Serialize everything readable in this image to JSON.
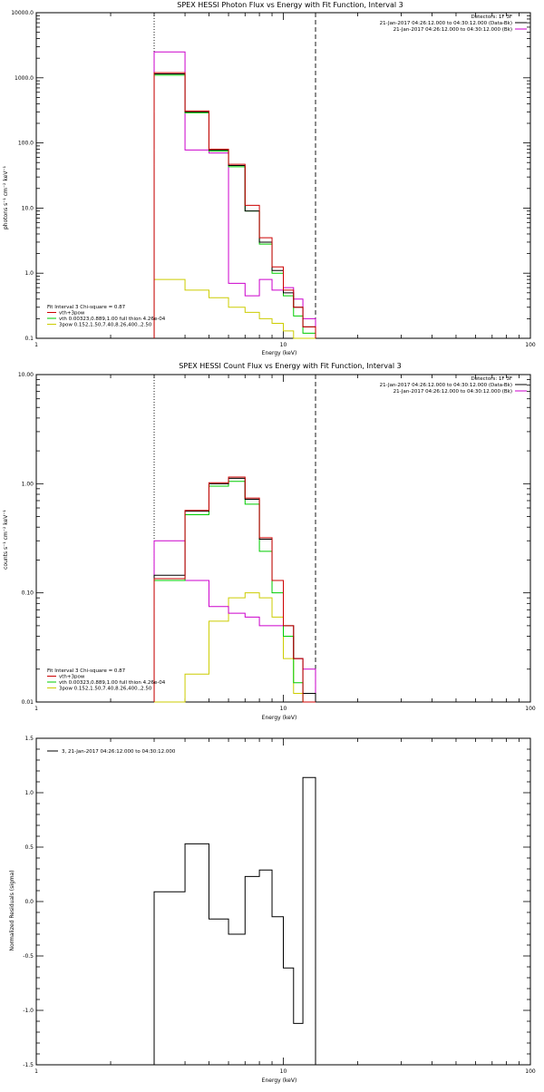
{
  "chart_data": [
    {
      "type": "line",
      "title": "SPEX HESSI Photon Flux vs Energy with Fit Function, Interval 3",
      "xlabel": "Energy (keV)",
      "ylabel": "photons s⁻¹ cm⁻² keV⁻¹",
      "xscale": "log",
      "yscale": "log",
      "xlim": [
        1,
        100
      ],
      "ylim": [
        0.1,
        10000
      ],
      "x_ticks": [
        "1",
        "10",
        "100"
      ],
      "y_ticks": [
        "0.1",
        "1.0",
        "10.0",
        "100.0",
        "1000.0",
        "10000.0"
      ],
      "dotted_line_x": 3,
      "dashed_line_x": 13.5,
      "legend_top": {
        "header": "Detectors: 1F 3F",
        "entries": [
          {
            "text": "21-Jan-2017 04:26:12.000 to 04:30:12.000 (Data-Bk)",
            "color": "#000000"
          },
          {
            "text": "21-Jan-2017 04:26:12.000 to 04:30:12.000 (Bk)",
            "color": "#cc00cc"
          }
        ]
      },
      "legend_bottom": {
        "header": "Fit Interval 3   Chi-square = 0.87",
        "entries": [
          {
            "text": "vth+3pow",
            "color": "#cc0000"
          },
          {
            "text": "vth 0.00323,0.889,1.00  full thion 4.26e-04",
            "color": "#00cc00"
          },
          {
            "text": "3pow 0.152,1.50,7.40,8.26,400.,2.50",
            "color": "#cccc00"
          }
        ]
      },
      "edges": [
        3.0,
        4.0,
        5.0,
        6.0,
        7.0,
        8.0,
        9.0,
        10.0,
        11.0,
        12.0,
        13.5
      ],
      "series": [
        {
          "color": "#000000",
          "values": [
            1150,
            300,
            78,
            45,
            9,
            3,
            1.1,
            0.5,
            0.3,
            0.15
          ]
        },
        {
          "color": "#cc0000",
          "values": [
            1200,
            310,
            80,
            47,
            11,
            3.5,
            1.25,
            0.55,
            0.3,
            0.15
          ]
        },
        {
          "color": "#00cc00",
          "values": [
            1100,
            290,
            75,
            43,
            9,
            2.8,
            1.0,
            0.45,
            0.22,
            0.12
          ]
        },
        {
          "color": "#cc00cc",
          "values": [
            2500,
            78,
            70,
            0.7,
            0.45,
            0.8,
            0.55,
            0.6,
            0.4,
            0.2
          ]
        },
        {
          "color": "#cccc00",
          "values": [
            0.8,
            0.55,
            0.42,
            0.3,
            0.25,
            0.2,
            0.17,
            0.13,
            0.1,
            0.1
          ]
        }
      ]
    },
    {
      "type": "line",
      "title": "SPEX HESSI Count Flux vs Energy with Fit Function, Interval 3",
      "xlabel": "Energy (keV)",
      "ylabel": "counts s⁻¹ cm⁻² keV⁻¹",
      "xscale": "log",
      "yscale": "log",
      "xlim": [
        1,
        100
      ],
      "ylim": [
        0.01,
        10
      ],
      "x_ticks": [
        "1",
        "10",
        "100"
      ],
      "y_ticks": [
        "0.01",
        "0.10",
        "1.00",
        "10.00"
      ],
      "dotted_line_x": 3,
      "dashed_line_x": 13.5,
      "legend_top": {
        "header": "Detectors: 1F 3F",
        "entries": [
          {
            "text": "21-Jan-2017 04:26:12.000 to 04:30:12.000 (Data-Bk)",
            "color": "#000000"
          },
          {
            "text": "21-Jan-2017 04:26:12.000 to 04:30:12.000 (Bk)",
            "color": "#cc00cc"
          }
        ]
      },
      "legend_bottom": {
        "header": "Fit Interval 3   Chi-square = 0.87",
        "entries": [
          {
            "text": "vth+3pow",
            "color": "#cc0000"
          },
          {
            "text": "vth 0.00323,0.889,1.00  full thion 4.26e-04",
            "color": "#00cc00"
          },
          {
            "text": "3pow 0.152,1.50,7.40,8.26,400.,2.50",
            "color": "#cccc00"
          }
        ]
      },
      "edges": [
        3.0,
        4.0,
        5.0,
        6.0,
        7.0,
        8.0,
        9.0,
        10.0,
        11.0,
        12.0,
        13.5
      ],
      "series": [
        {
          "color": "#000000",
          "values": [
            0.145,
            0.56,
            1.0,
            1.12,
            0.72,
            0.31,
            0.13,
            0.05,
            0.025,
            0.012
          ]
        },
        {
          "color": "#cc0000",
          "values": [
            0.135,
            0.57,
            1.02,
            1.15,
            0.74,
            0.32,
            0.13,
            0.05,
            0.025,
            0.01
          ]
        },
        {
          "color": "#00cc00",
          "values": [
            0.13,
            0.52,
            0.95,
            1.05,
            0.65,
            0.24,
            0.1,
            0.04,
            0.015,
            0.01
          ]
        },
        {
          "color": "#cc00cc",
          "values": [
            0.3,
            0.13,
            0.075,
            0.065,
            0.06,
            0.05,
            0.05,
            0.04,
            0.025,
            0.02
          ]
        },
        {
          "color": "#cccc00",
          "values": [
            0.01,
            0.018,
            0.055,
            0.09,
            0.1,
            0.09,
            0.06,
            0.025,
            0.012,
            0.01
          ]
        }
      ]
    },
    {
      "type": "line",
      "title": "",
      "xlabel": "Energy (keV)",
      "ylabel": "Normalized Residuals (sigma)",
      "xscale": "log",
      "yscale": "linear",
      "xlim": [
        1,
        100
      ],
      "ylim": [
        -1.5,
        1.5
      ],
      "x_ticks": [
        "1",
        "10",
        "100"
      ],
      "y_ticks": [
        "-1.5",
        "-1.0",
        "-0.5",
        "0.0",
        "0.5",
        "1.0",
        "1.5"
      ],
      "legend_top": {
        "entries": [
          {
            "text": "3, 21-Jan-2017 04:26:12.000 to 04:30:12.000",
            "color": "#000000"
          }
        ]
      },
      "edges": [
        3.0,
        4.0,
        5.0,
        6.0,
        7.0,
        8.0,
        9.0,
        10.0,
        11.0,
        12.0,
        13.5
      ],
      "series": [
        {
          "color": "#000000",
          "values": [
            0.09,
            0.53,
            -0.16,
            -0.3,
            0.23,
            0.29,
            -0.14,
            -0.61,
            -1.12,
            1.14
          ]
        }
      ]
    }
  ]
}
